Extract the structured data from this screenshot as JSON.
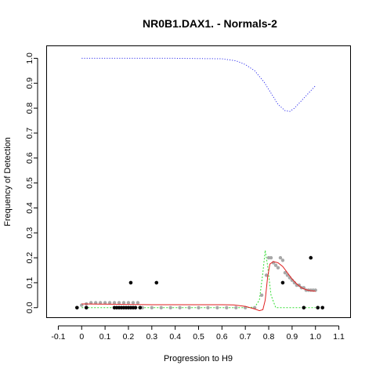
{
  "chart_data": {
    "type": "scatter",
    "title": "NR0B1.DAX1. - Normals-2",
    "xlabel": "Progression to H9",
    "ylabel": "Frequency of Detection",
    "xlim": [
      -0.15,
      1.15
    ],
    "ylim": [
      -0.04,
      1.05
    ],
    "x_ticks": [
      -0.1,
      0.0,
      0.1,
      0.2,
      0.3,
      0.4,
      0.5,
      0.6,
      0.7,
      0.8,
      0.9,
      1.0,
      1.1
    ],
    "x_tick_labels": [
      "-0.1",
      "0",
      "0.1",
      "0.2",
      "0.3",
      "0.4",
      "0.5",
      "0.6",
      "0.7",
      "0.8",
      "0.9",
      "1.0",
      "1.1"
    ],
    "y_ticks": [
      0.0,
      0.1,
      0.2,
      0.3,
      0.4,
      0.5,
      0.6,
      0.7,
      0.8,
      0.9,
      1.0
    ],
    "y_tick_labels": [
      "0.0",
      "0.1",
      "0.2",
      "0.3",
      "0.4",
      "0.5",
      "0.6",
      "0.7",
      "0.8",
      "0.9",
      "1.0"
    ],
    "grid": false,
    "colors": {
      "black_points": "#000000",
      "grey_points": "#a8a8a8",
      "red_curve": "#e02020",
      "green_curve": "#33dd33",
      "blue_curve": "#3333ee"
    },
    "black_points": [
      [
        -0.02,
        0.0
      ],
      [
        0.02,
        0.0
      ],
      [
        0.14,
        0.0
      ],
      [
        0.15,
        0.0
      ],
      [
        0.16,
        0.0
      ],
      [
        0.17,
        0.0
      ],
      [
        0.18,
        0.0
      ],
      [
        0.19,
        0.0
      ],
      [
        0.2,
        0.0
      ],
      [
        0.21,
        0.0
      ],
      [
        0.22,
        0.0
      ],
      [
        0.23,
        0.0
      ],
      [
        0.25,
        0.0
      ],
      [
        0.21,
        0.1
      ],
      [
        0.32,
        0.1
      ],
      [
        0.86,
        0.1
      ],
      [
        0.95,
        0.0
      ],
      [
        0.98,
        0.2
      ],
      [
        1.01,
        0.0
      ],
      [
        1.03,
        0.0
      ]
    ],
    "grey_points": [
      [
        0.0,
        0.01
      ],
      [
        0.02,
        0.015
      ],
      [
        0.04,
        0.02
      ],
      [
        0.06,
        0.02
      ],
      [
        0.08,
        0.02
      ],
      [
        0.1,
        0.02
      ],
      [
        0.12,
        0.02
      ],
      [
        0.14,
        0.02
      ],
      [
        0.16,
        0.02
      ],
      [
        0.18,
        0.02
      ],
      [
        0.2,
        0.02
      ],
      [
        0.22,
        0.02
      ],
      [
        0.24,
        0.02
      ],
      [
        0.26,
        0.0
      ],
      [
        0.3,
        0.0
      ],
      [
        0.34,
        0.0
      ],
      [
        0.38,
        0.0
      ],
      [
        0.42,
        0.0
      ],
      [
        0.46,
        0.0
      ],
      [
        0.5,
        0.0
      ],
      [
        0.54,
        0.0
      ],
      [
        0.58,
        0.0
      ],
      [
        0.62,
        0.0
      ],
      [
        0.66,
        0.0
      ],
      [
        0.7,
        0.0
      ],
      [
        0.74,
        0.0
      ],
      [
        0.77,
        0.05
      ],
      [
        0.79,
        0.13
      ],
      [
        0.8,
        0.2
      ],
      [
        0.81,
        0.2
      ],
      [
        0.82,
        0.18
      ],
      [
        0.83,
        0.17
      ],
      [
        0.84,
        0.16
      ],
      [
        0.85,
        0.2
      ],
      [
        0.86,
        0.19
      ],
      [
        0.87,
        0.14
      ],
      [
        0.88,
        0.13
      ],
      [
        0.89,
        0.12
      ],
      [
        0.9,
        0.11
      ],
      [
        0.91,
        0.1
      ],
      [
        0.92,
        0.09
      ],
      [
        0.93,
        0.09
      ],
      [
        0.94,
        0.08
      ],
      [
        0.95,
        0.08
      ],
      [
        0.96,
        0.07
      ],
      [
        0.97,
        0.07
      ],
      [
        0.98,
        0.07
      ],
      [
        0.99,
        0.07
      ],
      [
        1.0,
        0.07
      ]
    ],
    "red_curve": [
      [
        0.0,
        0.015
      ],
      [
        0.1,
        0.014
      ],
      [
        0.2,
        0.013
      ],
      [
        0.3,
        0.012
      ],
      [
        0.4,
        0.012
      ],
      [
        0.5,
        0.012
      ],
      [
        0.6,
        0.012
      ],
      [
        0.65,
        0.011
      ],
      [
        0.7,
        0.005
      ],
      [
        0.74,
        -0.005
      ],
      [
        0.76,
        -0.012
      ],
      [
        0.775,
        -0.008
      ],
      [
        0.785,
        0.03
      ],
      [
        0.795,
        0.12
      ],
      [
        0.805,
        0.175
      ],
      [
        0.82,
        0.185
      ],
      [
        0.84,
        0.18
      ],
      [
        0.86,
        0.165
      ],
      [
        0.88,
        0.14
      ],
      [
        0.9,
        0.115
      ],
      [
        0.92,
        0.095
      ],
      [
        0.94,
        0.08
      ],
      [
        0.96,
        0.072
      ],
      [
        0.98,
        0.068
      ],
      [
        1.0,
        0.066
      ]
    ],
    "green_curve": [
      [
        0.0,
        0.0
      ],
      [
        0.1,
        0.0
      ],
      [
        0.2,
        0.0
      ],
      [
        0.3,
        0.0
      ],
      [
        0.4,
        0.0
      ],
      [
        0.5,
        0.0
      ],
      [
        0.6,
        0.0
      ],
      [
        0.7,
        0.0
      ],
      [
        0.74,
        0.002
      ],
      [
        0.76,
        0.03
      ],
      [
        0.775,
        0.14
      ],
      [
        0.785,
        0.23
      ],
      [
        0.795,
        0.17
      ],
      [
        0.81,
        0.05
      ],
      [
        0.83,
        0.0
      ],
      [
        0.9,
        0.0
      ],
      [
        1.0,
        0.0
      ]
    ],
    "blue_curve": [
      [
        0.0,
        1.0
      ],
      [
        0.2,
        1.0
      ],
      [
        0.4,
        1.0
      ],
      [
        0.6,
        0.998
      ],
      [
        0.66,
        0.99
      ],
      [
        0.7,
        0.975
      ],
      [
        0.74,
        0.95
      ],
      [
        0.78,
        0.905
      ],
      [
        0.81,
        0.86
      ],
      [
        0.84,
        0.815
      ],
      [
        0.87,
        0.79
      ],
      [
        0.89,
        0.787
      ],
      [
        0.91,
        0.8
      ],
      [
        0.94,
        0.83
      ],
      [
        0.97,
        0.86
      ],
      [
        1.0,
        0.89
      ]
    ]
  }
}
